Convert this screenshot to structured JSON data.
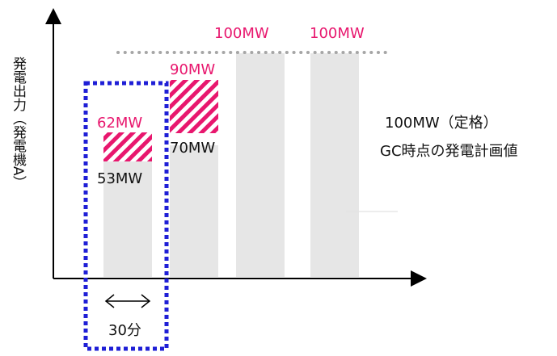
{
  "colors": {
    "magenta": "#e8176e",
    "axis": "#000000",
    "bar_fill": "#e6e6e6",
    "dotted_line": "#a6a6a6",
    "box_border": "#1f1fd6",
    "text": "#111111"
  },
  "y_axis_label": "発電出力（発電機A）",
  "labels": {
    "top_100mw_1": "100MW",
    "top_100mw_2": "100MW",
    "mw_90": "90MW",
    "mw_62": "62MW",
    "mw_70": "70MW",
    "mw_53": "53MW",
    "rated": "100MW（定格）",
    "gc_plan": "GC時点の発電計画値",
    "interval": "30分"
  }
}
